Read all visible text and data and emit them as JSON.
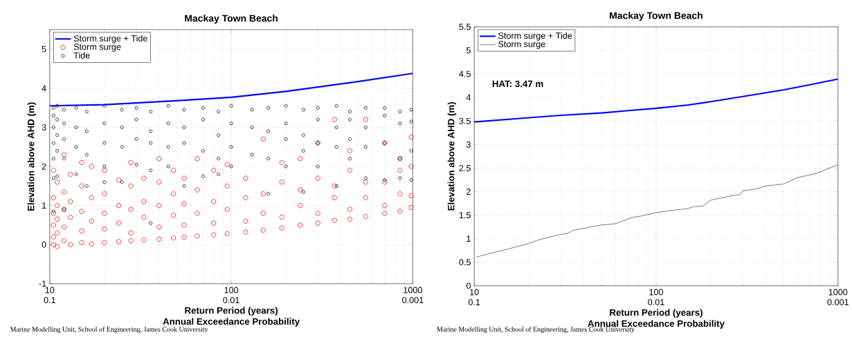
{
  "chart_data": [
    {
      "type": "line",
      "title": "Mackay Town Beach",
      "xlabel": "Return Period (years)",
      "ylabel": "Elevation above AHD (m)",
      "x2label": "Annual Exceedance Probability",
      "log": "x",
      "xlim": [
        10,
        1000
      ],
      "xticks": [
        10,
        100,
        1000
      ],
      "ylim": [
        -1,
        5.5
      ],
      "yticks": [
        -1,
        0,
        1,
        2,
        3,
        4,
        5
      ],
      "grid": true,
      "legend": "top left",
      "annotations": [
        "0.1",
        "0.01",
        "0.001",
        "Marine Modelling Unit, School of Engineering, James Cook University"
      ],
      "series": [
        {
          "name": "Storm surge + Tide",
          "color": "#0000ff",
          "x": [
            10,
            20,
            50,
            100,
            200,
            500,
            1000
          ],
          "values": [
            3.55,
            3.58,
            3.68,
            3.77,
            3.92,
            4.17,
            4.38
          ]
        },
        {
          "name": "Storm surge",
          "type": "scatter",
          "marker": "circle",
          "color": "#ff0000",
          "x": [
            10.5,
            10.5,
            10.5,
            10.5,
            10.5,
            10.5,
            11,
            11,
            11,
            11,
            11,
            12,
            12,
            12,
            12,
            12,
            13,
            13,
            13,
            13,
            15,
            15,
            15,
            15,
            15,
            17,
            17,
            17,
            17,
            20,
            20,
            20,
            20,
            20,
            24,
            24,
            24,
            24,
            28,
            28,
            28,
            28,
            28,
            33,
            33,
            33,
            33,
            40,
            40,
            40,
            40,
            40,
            48,
            48,
            48,
            48,
            55,
            55,
            55,
            55,
            65,
            65,
            65,
            65,
            80,
            80,
            80,
            80,
            95,
            95,
            95,
            95,
            120,
            120,
            120,
            120,
            150,
            150,
            150,
            150,
            190,
            190,
            190,
            190,
            240,
            240,
            240,
            240,
            300,
            300,
            300,
            300,
            370,
            370,
            370,
            370,
            450,
            450,
            450,
            450,
            550,
            550,
            550,
            550,
            700,
            700,
            700,
            700,
            850,
            850,
            850,
            850,
            980,
            980,
            980,
            980
          ],
          "values": [
            0,
            0.2,
            0.5,
            0.8,
            1.2,
            1.9,
            -0.05,
            0.3,
            0.65,
            1.0,
            1.6,
            0.1,
            0.45,
            0.9,
            1.35,
            2.3,
            0.0,
            0.7,
            1.1,
            1.8,
            0.05,
            0.35,
            0.85,
            1.5,
            2.1,
            0.02,
            0.6,
            1.2,
            2.0,
            0.05,
            0.4,
            0.8,
            1.3,
            1.9,
            0.08,
            0.55,
            1.0,
            1.65,
            0.1,
            0.3,
            0.9,
            1.5,
            2.1,
            0.12,
            0.7,
            1.1,
            1.7,
            0.14,
            0.45,
            1.0,
            1.6,
            2.2,
            0.17,
            0.75,
            1.3,
            1.9,
            0.19,
            0.5,
            1.05,
            1.7,
            0.22,
            0.8,
            1.4,
            2.2,
            0.25,
            0.55,
            1.1,
            1.9,
            0.28,
            0.9,
            1.5,
            2.05,
            0.32,
            0.6,
            1.2,
            1.7,
            0.37,
            0.8,
            1.3,
            2.7,
            0.43,
            0.7,
            1.6,
            2.1,
            0.5,
            1.0,
            1.4,
            2.2,
            0.55,
            0.8,
            1.7,
            2.6,
            0.62,
            1.2,
            1.5,
            3.2,
            0.65,
            0.9,
            1.9,
            2.4,
            0.72,
            1.2,
            1.6,
            3.2,
            0.8,
            1.0,
            1.6,
            2.6,
            0.85,
            1.3,
            1.9,
            2.2,
            0.95,
            1.25,
            2.0,
            2.75
          ]
        },
        {
          "name": "Tide",
          "type": "scatter",
          "marker": "circle",
          "color": "#000000",
          "x": [
            10.5,
            10.5,
            10.5,
            10.5,
            10.5,
            10.5,
            10.5,
            11,
            11,
            11,
            11,
            11,
            12,
            12,
            12,
            12,
            12,
            14,
            14,
            14,
            14,
            16,
            16,
            16,
            16,
            20,
            20,
            20,
            20,
            20,
            25,
            25,
            25,
            25,
            30,
            30,
            30,
            30,
            36,
            36,
            36,
            36,
            36,
            45,
            45,
            45,
            45,
            55,
            55,
            55,
            55,
            70,
            70,
            70,
            70,
            85,
            85,
            85,
            85,
            100,
            100,
            100,
            100,
            130,
            130,
            130,
            160,
            160,
            160,
            160,
            200,
            200,
            200,
            200,
            250,
            250,
            250,
            250,
            300,
            300,
            300,
            300,
            380,
            380,
            380,
            380,
            450,
            450,
            450,
            450,
            550,
            550,
            550,
            550,
            700,
            700,
            700,
            700,
            850,
            850,
            850,
            850,
            980,
            980,
            980,
            980
          ],
          "values": [
            3.5,
            3.3,
            3.0,
            2.6,
            2.2,
            1.7,
            0.85,
            3.55,
            3.2,
            2.8,
            2.4,
            1.75,
            3.45,
            3.1,
            2.7,
            2.2,
            0.9,
            3.5,
            3.0,
            2.5,
            1.8,
            3.4,
            2.9,
            2.3,
            1.5,
            3.55,
            3.1,
            2.6,
            2.0,
            1.6,
            3.45,
            3.0,
            2.5,
            1.6,
            3.5,
            3.2,
            2.7,
            2.05,
            3.4,
            2.9,
            2.6,
            1.9,
            0.55,
            3.55,
            3.1,
            2.5,
            2.0,
            3.45,
            3.0,
            2.6,
            1.5,
            3.5,
            3.2,
            2.4,
            1.75,
            3.4,
            2.8,
            2.2,
            1.8,
            3.55,
            3.1,
            2.5,
            2.0,
            3.45,
            3.0,
            2.3,
            3.5,
            2.9,
            2.2,
            1.3,
            3.55,
            3.1,
            2.7,
            2.0,
            3.45,
            2.8,
            2.4,
            1.35,
            3.5,
            3.2,
            2.6,
            2.0,
            3.55,
            3.0,
            2.5,
            1.5,
            3.4,
            3.2,
            2.7,
            2.2,
            3.5,
            3.0,
            2.5,
            1.7,
            3.5,
            3.3,
            2.6,
            1.65,
            3.4,
            3.1,
            2.2,
            1.7,
            3.45,
            3.15,
            2.4,
            1.65
          ]
        }
      ]
    },
    {
      "type": "line",
      "title": "Mackay Town Beach",
      "xlabel": "Return Period (years)",
      "ylabel": "Elevation above AHD (m)",
      "x2label": "Annual Exceedance Probability",
      "log": "x",
      "xlim": [
        10,
        1000
      ],
      "xticks": [
        10,
        100,
        1000
      ],
      "ylim": [
        0,
        5.5
      ],
      "yticks": [
        0,
        0.5,
        1,
        1.5,
        2,
        2.5,
        3,
        3.5,
        4,
        4.5,
        5,
        5.5
      ],
      "grid": true,
      "legend": "top left",
      "annotations": [
        "0.1",
        "0.01",
        "0.001",
        "**HAT:  3.47  m**",
        "Marine Modelling Unit, School of Engineering, James Cook University"
      ],
      "series": [
        {
          "name": "Storm surge + Tide",
          "color": "#0000ff",
          "x": [
            10,
            20,
            30,
            50,
            70,
            100,
            150,
            200,
            300,
            500,
            700,
            1000
          ],
          "values": [
            3.48,
            3.57,
            3.62,
            3.67,
            3.72,
            3.77,
            3.84,
            3.91,
            4.02,
            4.16,
            4.27,
            4.39
          ]
        },
        {
          "name": "Storm surge",
          "color": "#555555",
          "x": [
            10.3,
            12,
            15,
            20,
            22,
            25,
            30,
            33,
            35,
            40,
            45,
            50,
            60,
            65,
            75,
            80,
            100,
            120,
            150,
            160,
            180,
            200,
            250,
            290,
            300,
            350,
            400,
            500,
            600,
            750,
            1000
          ],
          "values": [
            0.61,
            0.68,
            0.77,
            0.9,
            0.96,
            1.02,
            1.09,
            1.12,
            1.18,
            1.22,
            1.26,
            1.29,
            1.32,
            1.37,
            1.46,
            1.47,
            1.55,
            1.6,
            1.64,
            1.68,
            1.69,
            1.82,
            1.9,
            1.94,
            2.02,
            2.05,
            2.12,
            2.16,
            2.3,
            2.38,
            2.57
          ]
        }
      ]
    }
  ]
}
